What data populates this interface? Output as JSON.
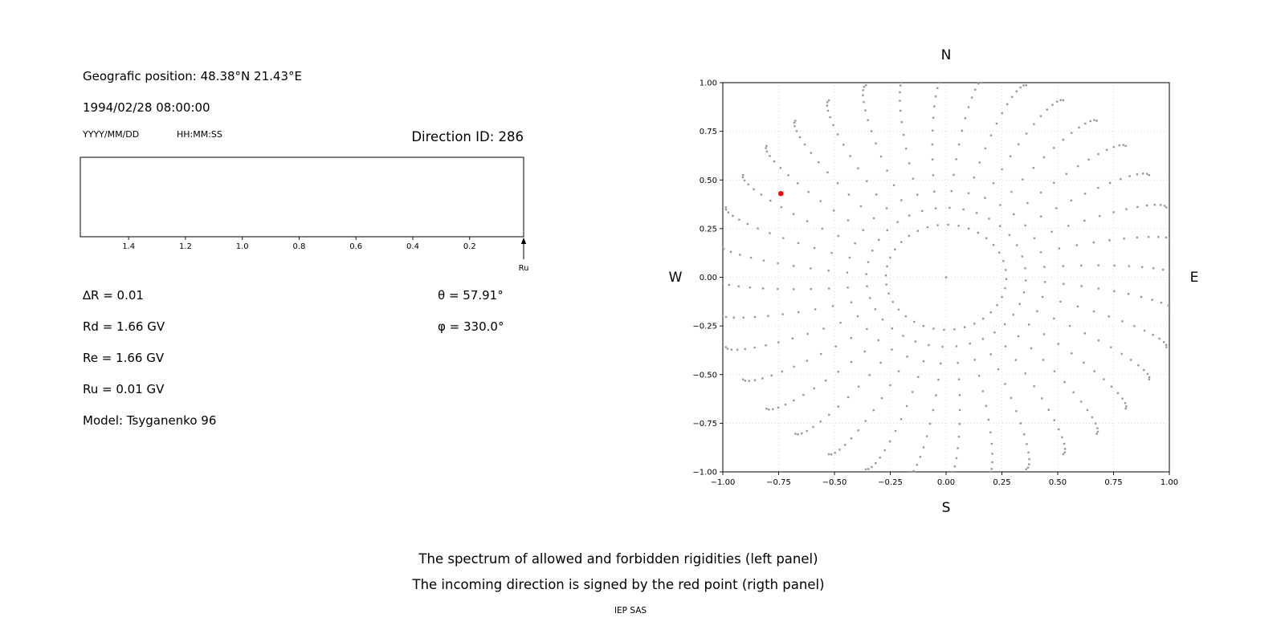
{
  "left_panel": {
    "geographic_position": "Geografic position: 48.38°N 21.43°E",
    "datetime": "1994/02/28 08:00:00",
    "date_format_label": "YYYY/MM/DD",
    "time_format_label": "HH:MM:SS",
    "direction_id": "Direction ID: 286",
    "params_left": [
      "∆R = 0.01",
      "Rd = 1.66 GV",
      "Re = 1.66 GV",
      "Ru = 0.01 GV",
      "Model: Tsyganenko 96"
    ],
    "params_right": [
      "θ = 57.91°",
      "φ = 330.0°"
    ]
  },
  "chart_data": [
    {
      "id": "rigidity-spectrum",
      "type": "scatter",
      "title": "",
      "x_ticks": [
        "1.4",
        "1.2",
        "1.0",
        "0.8",
        "0.6",
        "0.4",
        "0.2"
      ],
      "x_range": [
        1.57,
        0.01
      ],
      "x_reversed": true,
      "y_range": [
        0,
        1
      ],
      "points": [],
      "arrow": {
        "label": "Ru",
        "x": 0.01
      }
    },
    {
      "id": "asymptotic-direction-map",
      "type": "scatter",
      "x_range": [
        -1.0,
        1.0
      ],
      "y_range": [
        -1.0,
        1.0
      ],
      "x_ticks": [
        "−1.00",
        "−0.75",
        "−0.50",
        "−0.25",
        "0.00",
        "0.25",
        "0.50",
        "0.75",
        "1.00"
      ],
      "y_ticks": [
        "1.00",
        "0.75",
        "0.50",
        "0.25",
        "0.00",
        "−0.25",
        "−0.50",
        "−0.75",
        "−1.00"
      ],
      "compass": {
        "n": "N",
        "s": "S",
        "w": "W",
        "e": "E"
      },
      "grid": true,
      "series": [
        {
          "name": "direction-grid-dots",
          "color": "#989898",
          "marker": "square",
          "marker_px": 2.4,
          "pattern": {
            "kind": "radial-spokes",
            "n_spokes": 36,
            "r_inner": 0.27,
            "r_outer": 1.05,
            "points_per_spoke": 15,
            "curvature_deg": 8,
            "center_dot": true
          }
        },
        {
          "name": "incoming-direction",
          "color": "#ff0000",
          "marker": "circle",
          "marker_px": 6.5,
          "points": [
            [
              -0.74,
              0.43
            ]
          ]
        }
      ]
    }
  ],
  "caption": {
    "line1": "The spectrum of allowed and forbidden rigidities (left panel)",
    "line2": "The incoming direction is signed by the red point (rigth panel)"
  },
  "footer": {
    "text": "IEP SAS"
  }
}
